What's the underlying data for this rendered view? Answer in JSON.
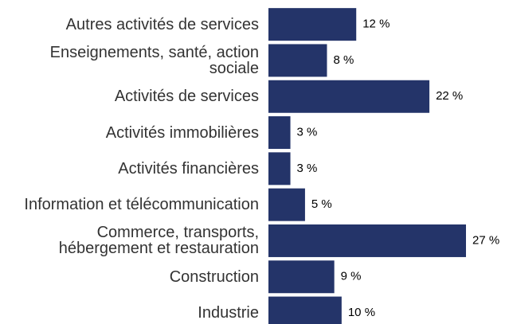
{
  "chart_data": {
    "type": "bar",
    "orientation": "horizontal",
    "categories": [
      "Autres activités de services",
      "Enseignements, santé, action sociale",
      "Activités de services",
      "Activités immobilières",
      "Activités financières",
      "Information et télécommunication",
      "Commerce, transports, hébergement et restauration",
      "Construction",
      "Industrie"
    ],
    "values": [
      12,
      8,
      22,
      3,
      3,
      5,
      27,
      9,
      10
    ],
    "value_labels": [
      "12 %",
      "8 %",
      "22 %",
      "3 %",
      "3 %",
      "5 %",
      "27 %",
      "9 %",
      "10 %"
    ],
    "color": "#243469"
  }
}
